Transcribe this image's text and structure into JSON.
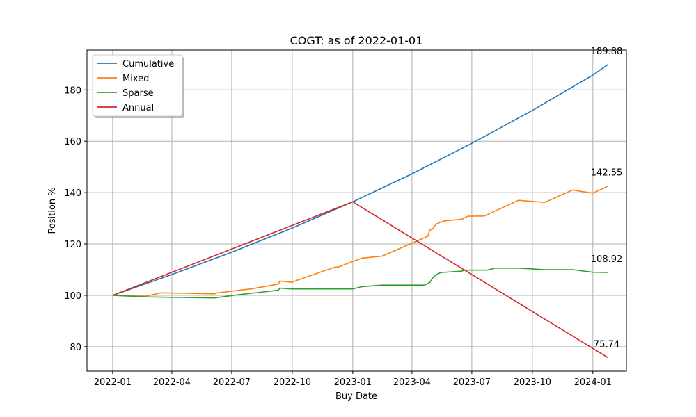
{
  "chart_data": {
    "type": "line",
    "title": "COGT: as of 2022-01-01",
    "xlabel": "Buy Date",
    "ylabel": "Position %",
    "xlim": [
      "2021-11-23",
      "2024-02-21"
    ],
    "ylim": [
      70.5,
      195.5
    ],
    "grid": true,
    "legend_position": "top-left",
    "x_ticks": [
      "2022-01",
      "2022-04",
      "2022-07",
      "2022-10",
      "2023-01",
      "2023-04",
      "2023-07",
      "2023-10",
      "2024-01"
    ],
    "y_ticks": [
      80,
      100,
      120,
      140,
      160,
      180
    ],
    "series": [
      {
        "name": "Cumulative",
        "color": "#1f77b4",
        "points": [
          [
            "2022-01-01",
            100
          ],
          [
            "2022-04-01",
            108.1
          ],
          [
            "2022-07-01",
            116.8
          ],
          [
            "2022-10-01",
            126.2
          ],
          [
            "2023-01-01",
            136.4
          ],
          [
            "2023-04-01",
            147.3
          ],
          [
            "2023-07-01",
            159.2
          ],
          [
            "2023-10-01",
            172.0
          ],
          [
            "2024-01-01",
            185.8
          ],
          [
            "2024-01-24",
            189.88
          ]
        ],
        "end_label": "189.88"
      },
      {
        "name": "Mixed",
        "color": "#ff7f0e",
        "points": [
          [
            "2022-01-01",
            100
          ],
          [
            "2022-02-20",
            99.6
          ],
          [
            "2022-03-15",
            101.0
          ],
          [
            "2022-06-05",
            100.6
          ],
          [
            "2022-06-10",
            101.0
          ],
          [
            "2022-08-01",
            102.6
          ],
          [
            "2022-08-10",
            103.0
          ],
          [
            "2022-09-10",
            104.4
          ],
          [
            "2022-09-12",
            105.6
          ],
          [
            "2022-09-30",
            105.1
          ],
          [
            "2022-12-05",
            111.0
          ],
          [
            "2022-12-10",
            111.0
          ],
          [
            "2023-01-01",
            113.2
          ],
          [
            "2023-01-15",
            114.5
          ],
          [
            "2023-02-15",
            115.3
          ],
          [
            "2023-04-25",
            123.0
          ],
          [
            "2023-04-28",
            125.4
          ],
          [
            "2023-05-02",
            125.8
          ],
          [
            "2023-05-08",
            127.8
          ],
          [
            "2023-05-20",
            129.0
          ],
          [
            "2023-06-15",
            129.6
          ],
          [
            "2023-06-25",
            130.8
          ],
          [
            "2023-07-20",
            130.9
          ],
          [
            "2023-09-10",
            137.0
          ],
          [
            "2023-10-20",
            136.2
          ],
          [
            "2023-12-01",
            141.0
          ],
          [
            "2024-01-01",
            139.8
          ],
          [
            "2024-01-24",
            142.55
          ]
        ],
        "end_label": "142.55"
      },
      {
        "name": "Sparse",
        "color": "#2ca02c",
        "points": [
          [
            "2022-01-01",
            100
          ],
          [
            "2022-02-20",
            99.4
          ],
          [
            "2022-06-05",
            99.0
          ],
          [
            "2022-07-10",
            100.2
          ],
          [
            "2022-09-10",
            102.0
          ],
          [
            "2022-09-12",
            102.8
          ],
          [
            "2022-09-30",
            102.5
          ],
          [
            "2023-01-01",
            102.5
          ],
          [
            "2023-01-15",
            103.4
          ],
          [
            "2023-02-15",
            104.0
          ],
          [
            "2023-04-20",
            104.0
          ],
          [
            "2023-04-28",
            105.0
          ],
          [
            "2023-05-02",
            106.6
          ],
          [
            "2023-05-08",
            108.1
          ],
          [
            "2023-05-15",
            108.9
          ],
          [
            "2023-06-15",
            109.4
          ],
          [
            "2023-06-20",
            109.8
          ],
          [
            "2023-07-25",
            109.8
          ],
          [
            "2023-08-05",
            110.6
          ],
          [
            "2023-09-10",
            110.6
          ],
          [
            "2023-10-20",
            110.0
          ],
          [
            "2023-12-01",
            110.0
          ],
          [
            "2024-01-01",
            109.0
          ],
          [
            "2024-01-24",
            108.92
          ]
        ],
        "end_label": "108.92"
      },
      {
        "name": "Annual",
        "color": "#d62728",
        "points": [
          [
            "2022-01-01",
            100
          ],
          [
            "2023-01-01",
            136.4
          ],
          [
            "2024-01-24",
            75.74
          ]
        ],
        "end_label": "75.74"
      }
    ]
  }
}
